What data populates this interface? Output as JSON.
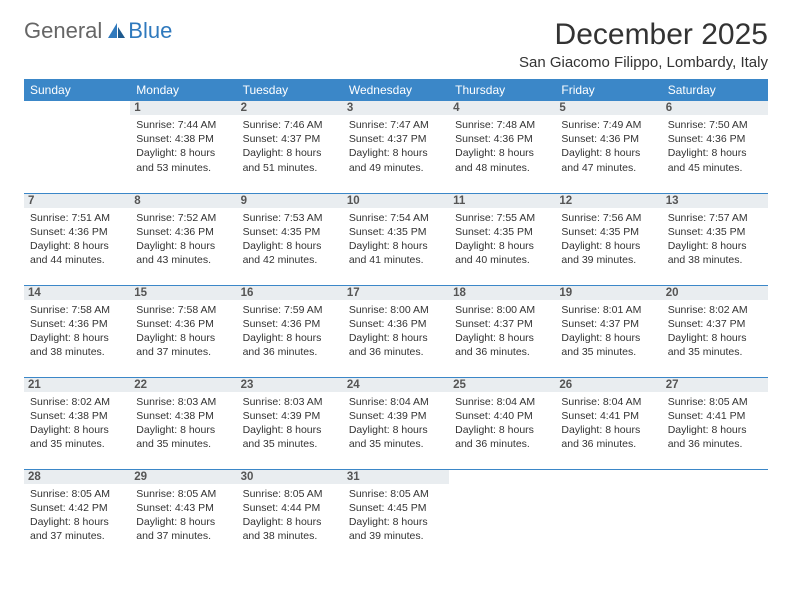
{
  "brand": {
    "word1": "General",
    "word2": "Blue",
    "accent_color": "#2f79bd"
  },
  "title": "December 2025",
  "location": "San Giacomo Filippo, Lombardy, Italy",
  "colors": {
    "header_bg": "#3b87c8",
    "header_fg": "#ffffff",
    "daynum_bg": "#e9edf0",
    "rule": "#3b87c8",
    "text": "#333333"
  },
  "dayHeaders": [
    "Sunday",
    "Monday",
    "Tuesday",
    "Wednesday",
    "Thursday",
    "Friday",
    "Saturday"
  ],
  "weeks": [
    [
      null,
      {
        "n": "1",
        "sr": "7:44 AM",
        "ss": "4:38 PM",
        "dl": "8 hours and 53 minutes."
      },
      {
        "n": "2",
        "sr": "7:46 AM",
        "ss": "4:37 PM",
        "dl": "8 hours and 51 minutes."
      },
      {
        "n": "3",
        "sr": "7:47 AM",
        "ss": "4:37 PM",
        "dl": "8 hours and 49 minutes."
      },
      {
        "n": "4",
        "sr": "7:48 AM",
        "ss": "4:36 PM",
        "dl": "8 hours and 48 minutes."
      },
      {
        "n": "5",
        "sr": "7:49 AM",
        "ss": "4:36 PM",
        "dl": "8 hours and 47 minutes."
      },
      {
        "n": "6",
        "sr": "7:50 AM",
        "ss": "4:36 PM",
        "dl": "8 hours and 45 minutes."
      }
    ],
    [
      {
        "n": "7",
        "sr": "7:51 AM",
        "ss": "4:36 PM",
        "dl": "8 hours and 44 minutes."
      },
      {
        "n": "8",
        "sr": "7:52 AM",
        "ss": "4:36 PM",
        "dl": "8 hours and 43 minutes."
      },
      {
        "n": "9",
        "sr": "7:53 AM",
        "ss": "4:35 PM",
        "dl": "8 hours and 42 minutes."
      },
      {
        "n": "10",
        "sr": "7:54 AM",
        "ss": "4:35 PM",
        "dl": "8 hours and 41 minutes."
      },
      {
        "n": "11",
        "sr": "7:55 AM",
        "ss": "4:35 PM",
        "dl": "8 hours and 40 minutes."
      },
      {
        "n": "12",
        "sr": "7:56 AM",
        "ss": "4:35 PM",
        "dl": "8 hours and 39 minutes."
      },
      {
        "n": "13",
        "sr": "7:57 AM",
        "ss": "4:35 PM",
        "dl": "8 hours and 38 minutes."
      }
    ],
    [
      {
        "n": "14",
        "sr": "7:58 AM",
        "ss": "4:36 PM",
        "dl": "8 hours and 38 minutes."
      },
      {
        "n": "15",
        "sr": "7:58 AM",
        "ss": "4:36 PM",
        "dl": "8 hours and 37 minutes."
      },
      {
        "n": "16",
        "sr": "7:59 AM",
        "ss": "4:36 PM",
        "dl": "8 hours and 36 minutes."
      },
      {
        "n": "17",
        "sr": "8:00 AM",
        "ss": "4:36 PM",
        "dl": "8 hours and 36 minutes."
      },
      {
        "n": "18",
        "sr": "8:00 AM",
        "ss": "4:37 PM",
        "dl": "8 hours and 36 minutes."
      },
      {
        "n": "19",
        "sr": "8:01 AM",
        "ss": "4:37 PM",
        "dl": "8 hours and 35 minutes."
      },
      {
        "n": "20",
        "sr": "8:02 AM",
        "ss": "4:37 PM",
        "dl": "8 hours and 35 minutes."
      }
    ],
    [
      {
        "n": "21",
        "sr": "8:02 AM",
        "ss": "4:38 PM",
        "dl": "8 hours and 35 minutes."
      },
      {
        "n": "22",
        "sr": "8:03 AM",
        "ss": "4:38 PM",
        "dl": "8 hours and 35 minutes."
      },
      {
        "n": "23",
        "sr": "8:03 AM",
        "ss": "4:39 PM",
        "dl": "8 hours and 35 minutes."
      },
      {
        "n": "24",
        "sr": "8:04 AM",
        "ss": "4:39 PM",
        "dl": "8 hours and 35 minutes."
      },
      {
        "n": "25",
        "sr": "8:04 AM",
        "ss": "4:40 PM",
        "dl": "8 hours and 36 minutes."
      },
      {
        "n": "26",
        "sr": "8:04 AM",
        "ss": "4:41 PM",
        "dl": "8 hours and 36 minutes."
      },
      {
        "n": "27",
        "sr": "8:05 AM",
        "ss": "4:41 PM",
        "dl": "8 hours and 36 minutes."
      }
    ],
    [
      {
        "n": "28",
        "sr": "8:05 AM",
        "ss": "4:42 PM",
        "dl": "8 hours and 37 minutes."
      },
      {
        "n": "29",
        "sr": "8:05 AM",
        "ss": "4:43 PM",
        "dl": "8 hours and 37 minutes."
      },
      {
        "n": "30",
        "sr": "8:05 AM",
        "ss": "4:44 PM",
        "dl": "8 hours and 38 minutes."
      },
      {
        "n": "31",
        "sr": "8:05 AM",
        "ss": "4:45 PM",
        "dl": "8 hours and 39 minutes."
      },
      null,
      null,
      null
    ]
  ],
  "labels": {
    "sunrise": "Sunrise: ",
    "sunset": "Sunset: ",
    "daylight": "Daylight: "
  }
}
